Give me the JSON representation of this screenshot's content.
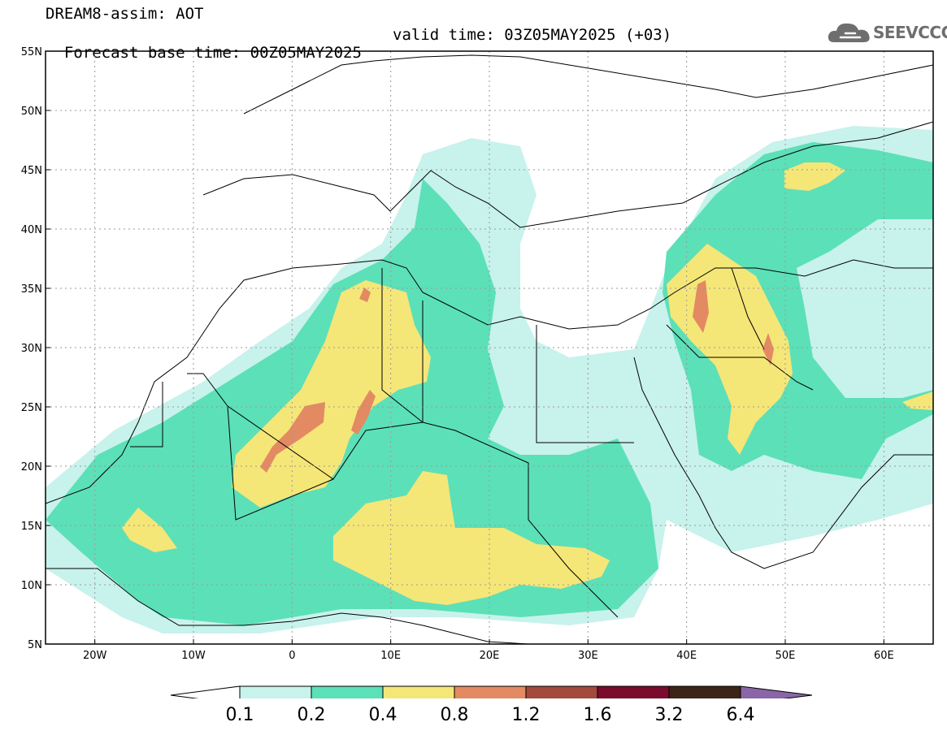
{
  "header": {
    "line1": "DREAM8-assim: AOT",
    "base_time": "Forecast base time: 00Z05MAY2025",
    "valid_time": "valid time: 03Z05MAY2025 (+03)"
  },
  "logo": {
    "text": "SEEVCCC",
    "icon": "cloud-icon"
  },
  "map": {
    "lon_range": [
      -25,
      65
    ],
    "lat_range": [
      5,
      55
    ],
    "lon_ticks": [
      {
        "v": -20,
        "label": "20W"
      },
      {
        "v": -10,
        "label": "10W"
      },
      {
        "v": 0,
        "label": "0"
      },
      {
        "v": 10,
        "label": "10E"
      },
      {
        "v": 20,
        "label": "20E"
      },
      {
        "v": 30,
        "label": "30E"
      },
      {
        "v": 40,
        "label": "40E"
      },
      {
        "v": 50,
        "label": "50E"
      },
      {
        "v": 60,
        "label": "60E"
      }
    ],
    "lat_ticks": [
      {
        "v": 5,
        "label": "5N"
      },
      {
        "v": 10,
        "label": "10N"
      },
      {
        "v": 15,
        "label": "15N"
      },
      {
        "v": 20,
        "label": "20N"
      },
      {
        "v": 25,
        "label": "25N"
      },
      {
        "v": 30,
        "label": "30N"
      },
      {
        "v": 35,
        "label": "35N"
      },
      {
        "v": 40,
        "label": "40N"
      },
      {
        "v": 45,
        "label": "45N"
      },
      {
        "v": 50,
        "label": "50N"
      },
      {
        "v": 55,
        "label": "55N"
      }
    ]
  },
  "colorbar": {
    "labels": [
      "0.1",
      "0.2",
      "0.4",
      "0.8",
      "1.2",
      "1.6",
      "3.2",
      "6.4"
    ],
    "colors": [
      "#ffffff",
      "#c8f2ec",
      "#5ce0b8",
      "#f5e678",
      "#e38a62",
      "#a34a3c",
      "#7a0b2c",
      "#3c2418",
      "#8a66a8"
    ]
  }
}
